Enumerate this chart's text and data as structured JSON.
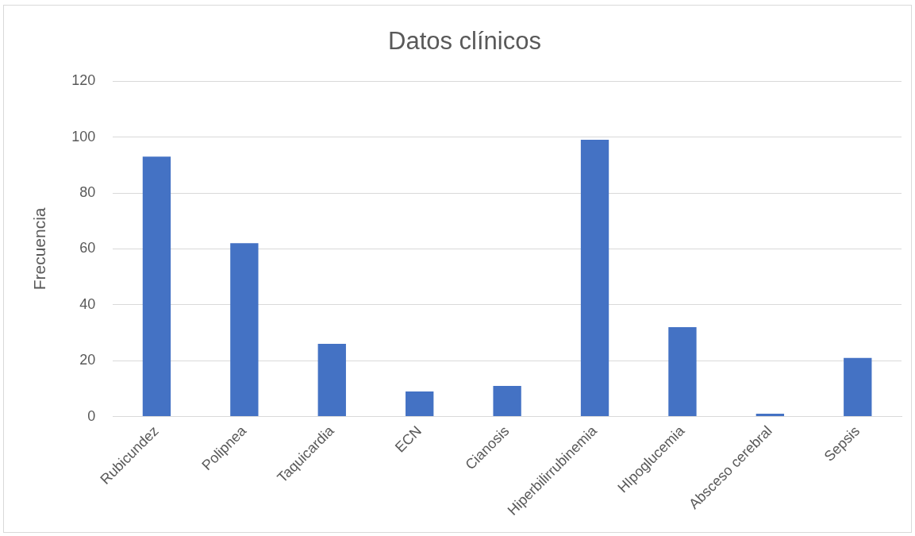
{
  "chart_data": {
    "type": "bar",
    "title": "Datos clínicos",
    "ylabel": "Frecuencia",
    "categories": [
      "Rubicundez",
      "Polipnea",
      "Taquicardia",
      "ECN",
      "Cianosis",
      "Hiperbilirrubinemia",
      "HIpoglucemia",
      "Absceso cerebral",
      "Sepsis"
    ],
    "values": [
      93,
      62,
      26,
      9,
      11,
      99,
      32,
      1,
      21
    ],
    "color": "#4472c4",
    "ylim": [
      0,
      120
    ],
    "yticks": [
      0,
      20,
      40,
      60,
      80,
      100,
      120
    ],
    "grid": "y",
    "legend": false
  }
}
